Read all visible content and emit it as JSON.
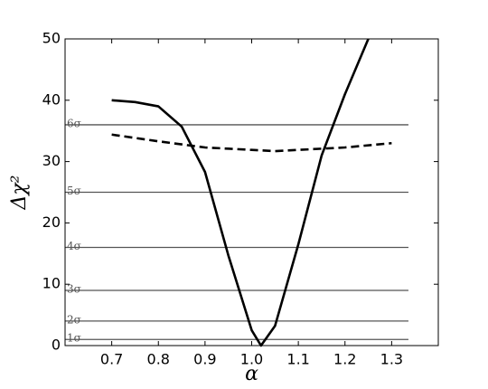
{
  "chart_data": {
    "type": "line",
    "xlabel": "α",
    "ylabel": "Δχ²",
    "xlim": [
      0.6,
      1.4
    ],
    "ylim": [
      0,
      50
    ],
    "xticks": [
      0.7,
      0.8,
      0.9,
      1.0,
      1.1,
      1.2,
      1.3
    ],
    "yticks": [
      0,
      10,
      20,
      30,
      40,
      50
    ],
    "reference_lines": [
      {
        "value": 1,
        "label": "1σ"
      },
      {
        "value": 4,
        "label": "2σ"
      },
      {
        "value": 9,
        "label": "3σ"
      },
      {
        "value": 16,
        "label": "4σ"
      },
      {
        "value": 25,
        "label": "5σ"
      },
      {
        "value": 36,
        "label": "6σ"
      }
    ],
    "reference_color": "#555555",
    "series": [
      {
        "color": "#000000",
        "dash": false,
        "x": [
          0.7,
          0.75,
          0.8,
          0.85,
          0.9,
          0.95,
          1.0,
          1.02,
          1.05,
          1.1,
          1.15,
          1.2,
          1.25
        ],
        "values": [
          40,
          39.7,
          39,
          35.7,
          28.3,
          14.7,
          2.5,
          0,
          3.2,
          16.5,
          31,
          41,
          50
        ]
      },
      {
        "color": "#000000",
        "dash": true,
        "x": [
          0.7,
          0.8,
          0.9,
          1.0,
          1.05,
          1.1,
          1.2,
          1.3
        ],
        "values": [
          34.4,
          33.3,
          32.3,
          31.9,
          31.7,
          31.9,
          32.3,
          33
        ]
      }
    ]
  }
}
